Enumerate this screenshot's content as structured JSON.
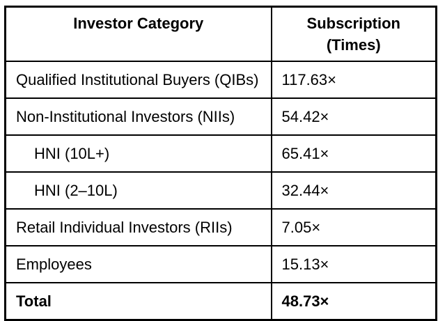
{
  "table": {
    "header": {
      "investor_category": "Investor Category",
      "subscription": "Subscription\n(Times)"
    },
    "rows": [
      {
        "category": "Qualified Institutional Buyers (QIBs)",
        "subscription": "117.63×"
      },
      {
        "category": "Non-Institutional Investors (NIIs)",
        "subscription": "54.42×"
      },
      {
        "category": "HNI (10L+)",
        "subscription": "65.41×"
      },
      {
        "category": "HNI (2–10L)",
        "subscription": "32.44×"
      },
      {
        "category": "Retail Individual Investors (RIIs)",
        "subscription": "7.05×"
      },
      {
        "category": "Employees",
        "subscription": "15.13×"
      },
      {
        "category": "Total",
        "subscription": "48.73×"
      }
    ],
    "colors": {
      "border": "#000000",
      "text": "#000000",
      "background": "#ffffff"
    }
  },
  "chart_data": {
    "type": "table",
    "columns": [
      "Investor Category",
      "Subscription (Times)"
    ],
    "rows": [
      [
        "Qualified Institutional Buyers (QIBs)",
        "117.63×"
      ],
      [
        "Non-Institutional Investors (NIIs)",
        "54.42×"
      ],
      [
        "HNI (10L+)",
        "65.41×"
      ],
      [
        "HNI (2–10L)",
        "32.44×"
      ],
      [
        "Retail Individual Investors (RIIs)",
        "7.05×"
      ],
      [
        "Employees",
        "15.13×"
      ],
      [
        "Total",
        "48.73×"
      ]
    ],
    "subscription_values_times": {
      "qib": 117.63,
      "nii": 54.42,
      "hni_10l_plus": 65.41,
      "hni_2_10l": 32.44,
      "rii": 7.05,
      "employees": 15.13,
      "total": 48.73
    },
    "notes": "Rows 'HNI (10L+)' and 'HNI (2–10L)' are indented sub-categories of NIIs; 'Total' row is bold."
  }
}
